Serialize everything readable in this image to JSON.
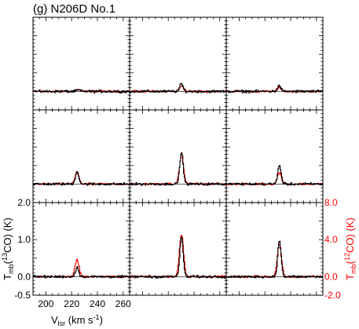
{
  "title": "(g) N206D No.1",
  "colors": {
    "co13": "#000000",
    "co12": "#ff0000",
    "frame": "#000000"
  },
  "chart_data": {
    "type": "line",
    "title": "(g) N206D No.1",
    "xlabel_main": "V",
    "xlabel_sub": "lsr",
    "xlabel_unit": " (km s",
    "xlabel_exp": "-1",
    "xlabel_close": ")",
    "x_ticks": [
      "200",
      "220",
      "240",
      "260"
    ],
    "xlim": [
      190,
      265
    ],
    "ylabel_left": {
      "a": "T",
      "sub": "mb",
      "b": "(",
      "sup": "13",
      "c": "CO) (K)"
    },
    "ylabel_right": {
      "a": "T",
      "sub": "mb",
      "b": "(",
      "sup": "12",
      "c": "CO) (K)"
    },
    "ylim_left": [
      -0.5,
      2.0
    ],
    "ylim_right": [
      -2.0,
      8.0
    ],
    "y_ticks_left": [
      "2.0",
      "1.0",
      "0.0",
      "-0.5"
    ],
    "y_ticks_right": [
      "8.0",
      "4.0",
      "0.0",
      "-2.0"
    ],
    "grid": "3x3",
    "series": [
      {
        "name": "13CO",
        "axis": "left"
      },
      {
        "name": "12CO",
        "axis": "right"
      }
    ],
    "panels": [
      {
        "row": 0,
        "col": 0,
        "peak_v": 225,
        "co13": 0.04,
        "co12": 0.05,
        "noise": 0.05
      },
      {
        "row": 0,
        "col": 1,
        "peak_v": 230,
        "co13": 0.2,
        "co12": 0.15,
        "noise": 0.05
      },
      {
        "row": 0,
        "col": 2,
        "peak_v": 231,
        "co13": 0.15,
        "co12": 0.1,
        "noise": 0.05
      },
      {
        "row": 1,
        "col": 0,
        "peak_v": 224,
        "co13": 0.35,
        "co12": 0.3,
        "noise": 0.05
      },
      {
        "row": 1,
        "col": 1,
        "peak_v": 230,
        "co13": 0.85,
        "co12": 0.75,
        "noise": 0.05
      },
      {
        "row": 1,
        "col": 2,
        "peak_v": 231,
        "co13": 0.5,
        "co12": 0.3,
        "noise": 0.05
      },
      {
        "row": 2,
        "col": 0,
        "peak_v": 224,
        "co13": 0.25,
        "co12": 0.45,
        "noise": 0.05
      },
      {
        "row": 2,
        "col": 1,
        "peak_v": 230,
        "co13": 1.05,
        "co12": 1.15,
        "noise": 0.05
      },
      {
        "row": 2,
        "col": 2,
        "peak_v": 231,
        "co13": 0.95,
        "co12": 0.9,
        "noise": 0.05
      }
    ]
  }
}
